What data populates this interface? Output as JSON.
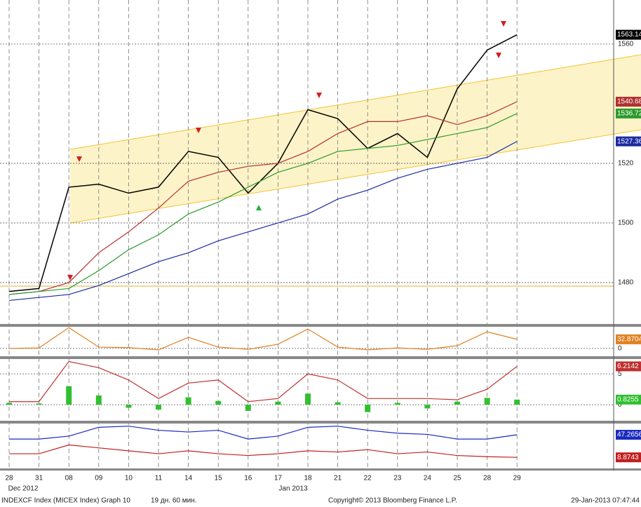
{
  "chart_data": [
    {
      "type": "line",
      "categories": [
        "28",
        "31",
        "08",
        "09",
        "10",
        "11",
        "14",
        "15",
        "16",
        "17",
        "18",
        "21",
        "22",
        "23",
        "24",
        "25",
        "28",
        "29"
      ],
      "ylim": [
        1466.1,
        1574.8
      ],
      "yticks": [
        1480,
        1500,
        1520,
        1560
      ],
      "grid": true,
      "series": [
        {
          "color": "#000000",
          "values": [
            1477,
            1478,
            1512,
            1513,
            1510,
            1512,
            1524,
            1522,
            1510,
            1520,
            1538,
            1535,
            1525,
            1530,
            1522,
            1545,
            1558,
            1563.14
          ]
        },
        {
          "color": "#b03030",
          "values": [
            1476,
            1477,
            1480,
            1490,
            1497,
            1505,
            1514,
            1517,
            1519,
            1520,
            1524,
            1530,
            1534,
            1534,
            1536,
            1533,
            1536,
            1540.68
          ]
        },
        {
          "color": "#2a9a2a",
          "values": [
            1476,
            1477,
            1478,
            1484,
            1491,
            1496,
            1503,
            1507,
            1512,
            1517,
            1520,
            1524,
            1525,
            1526,
            1528,
            1530,
            1532,
            1536.72
          ]
        },
        {
          "color": "#1a2aa0",
          "values": [
            1474,
            1475,
            1476,
            1479,
            1483,
            1487,
            1490,
            1494,
            1497,
            1500,
            1503,
            1508,
            1511,
            1515,
            1518,
            1520,
            1522,
            1527.36
          ]
        }
      ]
    },
    {
      "type": "line",
      "ylim": [
        -28,
        78
      ],
      "yticks": [
        0
      ],
      "series": [
        {
          "color": "#e08020",
          "values": [
            0,
            2,
            75,
            5,
            3,
            -5,
            40,
            5,
            -3,
            15,
            70,
            5,
            -5,
            2,
            -3,
            10,
            60,
            32.8704
          ]
        }
      ]
    },
    {
      "type": "line",
      "ylim": [
        -2.6,
        7.4
      ],
      "yticks": [
        0,
        5
      ],
      "series": [
        {
          "color": "#c03030",
          "values": [
            0.5,
            0.5,
            7,
            6,
            4,
            1,
            3.5,
            4,
            0.5,
            1,
            5,
            4,
            1,
            1,
            1,
            0.8,
            2.5,
            6.2142
          ]
        },
        {
          "color": "#30c030",
          "kind": "bar",
          "values": [
            0.3,
            0.2,
            3,
            1.5,
            -0.5,
            -0.8,
            1.2,
            0.6,
            -1,
            0.5,
            1.8,
            0.4,
            -1.2,
            0.3,
            -0.6,
            0.5,
            1.1,
            0.8255
          ]
        }
      ]
    },
    {
      "type": "line",
      "ylim": [
        -10,
        66.4
      ],
      "yticks": [],
      "series": [
        {
          "color": "#1a2ac0",
          "values": [
            40,
            40,
            45,
            60,
            62,
            55,
            52,
            55,
            40,
            45,
            60,
            62,
            55,
            50,
            48,
            40,
            40,
            47.2656
          ]
        },
        {
          "color": "#c02020",
          "values": [
            15,
            15,
            30,
            25,
            20,
            15,
            20,
            15,
            12,
            15,
            20,
            18,
            22,
            15,
            18,
            12,
            10,
            8.8743
          ]
        }
      ]
    }
  ],
  "period_labels": [
    "Dec 2012",
    "Jan 2013"
  ],
  "footer": {
    "title": "INDEXCF Index (MICEX Index) Graph 10",
    "interval": "19 дн. 60 мин.",
    "copyright": "Copyright© 2013 Bloomberg Finance L.P.",
    "timestamp": "29-Jan-2013 07:47:44"
  }
}
